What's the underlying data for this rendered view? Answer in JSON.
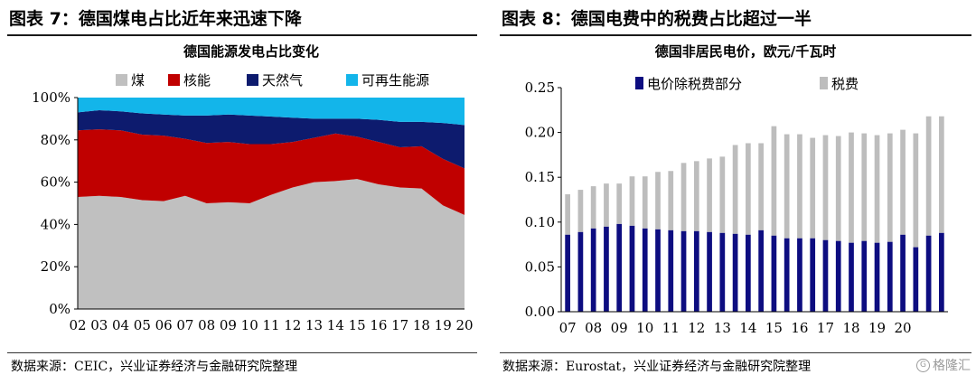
{
  "left": {
    "header": "图表 7：德国煤电占比近年来迅速下降",
    "source": "数据来源：CEIC，兴业证券经济与金融研究院整理",
    "chart_data": {
      "type": "area",
      "stacked": true,
      "title": "德国能源发电占比变化",
      "categories": [
        "02",
        "03",
        "04",
        "05",
        "06",
        "07",
        "08",
        "09",
        "10",
        "11",
        "12",
        "13",
        "14",
        "15",
        "16",
        "17",
        "18",
        "19",
        "20"
      ],
      "series": [
        {
          "name": "煤",
          "color": "#c0c0c0",
          "values": [
            53.0,
            53.5,
            53.0,
            51.5,
            51.0,
            53.5,
            50.0,
            50.5,
            50.0,
            54.0,
            57.5,
            60.0,
            60.5,
            61.5,
            59.0,
            57.5,
            57.0,
            49.0,
            44.5
          ]
        },
        {
          "name": "核能",
          "color": "#c00000",
          "values": [
            31.5,
            31.5,
            31.5,
            31.0,
            31.0,
            27.0,
            28.5,
            28.5,
            28.0,
            24.0,
            21.5,
            21.0,
            22.5,
            20.0,
            20.0,
            19.0,
            20.0,
            22.0,
            22.0
          ]
        },
        {
          "name": "天然气",
          "color": "#0d1b6e",
          "values": [
            8.5,
            9.0,
            9.0,
            10.0,
            10.0,
            11.0,
            13.0,
            13.0,
            13.5,
            13.0,
            11.5,
            9.0,
            7.0,
            8.5,
            10.5,
            12.0,
            11.5,
            17.0,
            20.5
          ]
        },
        {
          "name": "可再生能源",
          "color": "#13b5ea",
          "values": [
            7.0,
            6.0,
            6.5,
            7.5,
            8.0,
            8.5,
            8.5,
            8.0,
            8.5,
            9.0,
            9.5,
            10.0,
            10.0,
            10.0,
            10.5,
            11.5,
            11.5,
            12.0,
            13.0
          ]
        }
      ],
      "yticks": [
        "0%",
        "20%",
        "40%",
        "60%",
        "80%",
        "100%"
      ],
      "ylim": [
        0,
        100
      ]
    }
  },
  "right": {
    "header": "图表 8：德国电费中的税费占比超过一半",
    "source": "数据来源：Eurostat，兴业证券经济与金融研究院整理",
    "chart_data": {
      "type": "bar",
      "stacked": true,
      "title": "德国非居民电价，欧元/千瓦时",
      "xtick_labels": [
        "07",
        "08",
        "09",
        "10",
        "11",
        "12",
        "13",
        "14",
        "15",
        "16",
        "17",
        "18",
        "19",
        "20"
      ],
      "series": [
        {
          "name": "电价除税费部分",
          "color": "#0d0d80",
          "values": [
            0.086,
            0.089,
            0.093,
            0.095,
            0.098,
            0.096,
            0.093,
            0.092,
            0.091,
            0.09,
            0.09,
            0.089,
            0.088,
            0.087,
            0.086,
            0.091,
            0.085,
            0.082,
            0.082,
            0.082,
            0.08,
            0.079,
            0.077,
            0.079,
            0.077,
            0.078,
            0.086,
            0.072,
            0.085,
            0.088
          ]
        },
        {
          "name": "税费",
          "color": "#bdbdbd",
          "values": [
            0.045,
            0.047,
            0.047,
            0.048,
            0.045,
            0.055,
            0.058,
            0.064,
            0.066,
            0.076,
            0.078,
            0.082,
            0.085,
            0.099,
            0.102,
            0.097,
            0.122,
            0.116,
            0.116,
            0.112,
            0.117,
            0.117,
            0.123,
            0.12,
            0.12,
            0.121,
            0.117,
            0.127,
            0.133,
            0.13
          ]
        }
      ],
      "yticks": [
        "0.00",
        "0.05",
        "0.10",
        "0.15",
        "0.20",
        "0.25"
      ],
      "ylim": [
        0,
        0.25
      ]
    }
  },
  "watermark": "格隆汇"
}
